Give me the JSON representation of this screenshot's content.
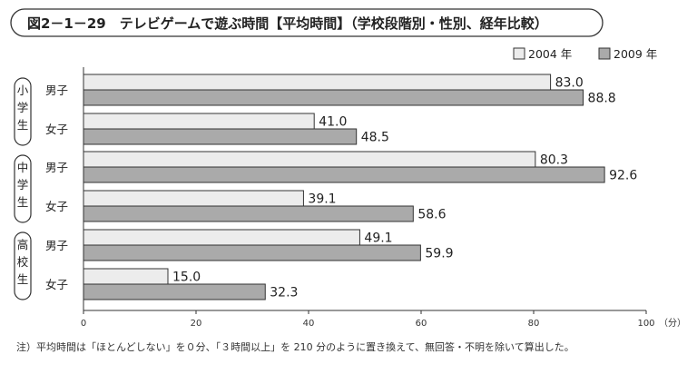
{
  "chart_data": {
    "type": "bar",
    "orientation": "horizontal",
    "title": "図2－1－29　テレビゲームで遊ぶ時間【平均時間】（学校段階別・性別、経年比較）",
    "groups": [
      {
        "label": "小学生",
        "categories": [
          "男子",
          "女子"
        ]
      },
      {
        "label": "中学生",
        "categories": [
          "男子",
          "女子"
        ]
      },
      {
        "label": "高校生",
        "categories": [
          "男子",
          "女子"
        ]
      }
    ],
    "series": [
      {
        "name": "2004 年",
        "color": "#ececec",
        "values": [
          83.0,
          41.0,
          80.3,
          39.1,
          49.1,
          15.0
        ]
      },
      {
        "name": "2009 年",
        "color": "#aaaaaa",
        "values": [
          88.8,
          48.5,
          92.6,
          58.6,
          59.9,
          32.3
        ]
      }
    ],
    "value_labels": [
      [
        "83.0",
        "41.0",
        "80.3",
        "39.1",
        "49.1",
        "15.0"
      ],
      [
        "88.8",
        "48.5",
        "92.6",
        "58.6",
        "59.9",
        "32.3"
      ]
    ],
    "xlim": [
      0,
      100
    ],
    "xticks": [
      "0",
      "20",
      "40",
      "60",
      "80",
      "100"
    ],
    "x_unit": "（分）",
    "legend_position": "top-right",
    "grid": false,
    "note": "注）平均時間は「ほとんどしない」を０分、「３時間以上」を 210 分のように置き換えて、無回答・不明を除いて算出した。"
  }
}
